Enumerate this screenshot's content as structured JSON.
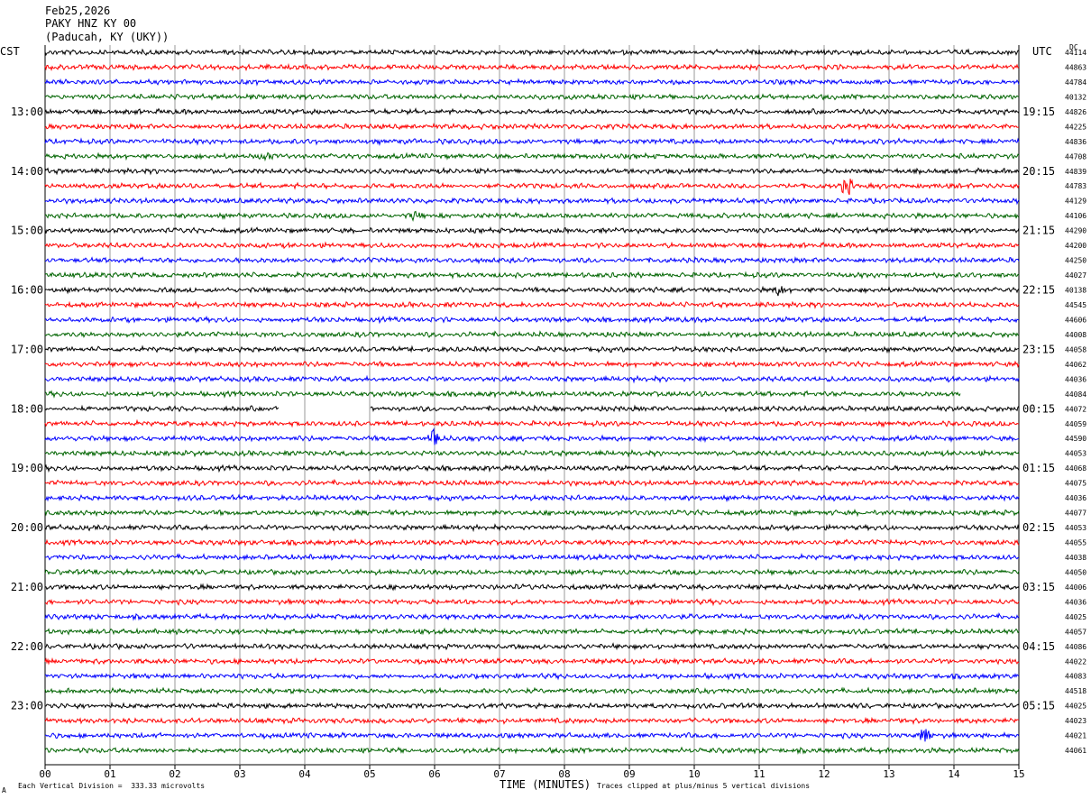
{
  "header": {
    "date": "Feb25,2026",
    "station": "PAKY HNZ KY 00",
    "location": "(Paducah, KY (UKY))"
  },
  "left_axis_label": "CST",
  "right_axis_label": "UTC",
  "dc_label": "DC",
  "footer": {
    "left_mark": "A",
    "scale": "Each Vertical Division =  333.33 microvolts",
    "xlabel": "TIME (MINUTES)",
    "clip_note": "Traces clipped at plus/minus 5 vertical divisions"
  },
  "chart_data": {
    "type": "line",
    "title": "",
    "xlabel": "TIME (MINUTES)",
    "ylabel": "",
    "xlim": [
      0,
      15
    ],
    "x_ticks": [
      "00",
      "01",
      "02",
      "03",
      "04",
      "05",
      "06",
      "07",
      "08",
      "09",
      "10",
      "11",
      "12",
      "13",
      "14",
      "15"
    ],
    "grid": "vertical lines at each minute",
    "trace_colors": [
      "#000000",
      "#ff0000",
      "#0000ff",
      "#006400"
    ],
    "traces_per_hour": 4,
    "minutes_per_trace": 15,
    "left_hour_labels": [
      "13:00",
      "14:00",
      "15:00",
      "16:00",
      "17:00",
      "18:00",
      "19:00",
      "20:00",
      "21:00",
      "22:00",
      "23:00"
    ],
    "right_hour_labels": [
      "19:15",
      "20:15",
      "21:15",
      "22:15",
      "23:15",
      "00:15",
      "01:15",
      "02:15",
      "03:15",
      "04:15",
      "05:15"
    ],
    "first_labeled_trace_index": 4,
    "dc_offsets": [
      "44114",
      "44863",
      "44784",
      "40132",
      "44826",
      "44225",
      "44836",
      "44708",
      "44839",
      "44783",
      "44129",
      "44106",
      "44290",
      "44200",
      "44250",
      "44027",
      "40138",
      "44545",
      "44606",
      "44008",
      "44058",
      "44062",
      "44036",
      "44084",
      "44072",
      "44059",
      "44590",
      "44053",
      "44068",
      "44075",
      "44036",
      "44077",
      "44053",
      "44055",
      "44038",
      "44050",
      "44006",
      "44036",
      "44025",
      "44057",
      "44086",
      "44022",
      "44083",
      "44518",
      "44025",
      "44023",
      "44021",
      "44061"
    ],
    "events": [
      {
        "trace": 7,
        "minute": 3.4,
        "amplitude": 0.4
      },
      {
        "trace": 9,
        "minute": 12.35,
        "amplitude": 1.0
      },
      {
        "trace": 11,
        "minute": 5.7,
        "amplitude": 0.4
      },
      {
        "trace": 16,
        "minute": 11.3,
        "amplitude": 0.5
      },
      {
        "trace": 26,
        "minute": 6.0,
        "amplitude": 1.3
      },
      {
        "trace": 46,
        "minute": 13.55,
        "amplitude": 1.0
      }
    ],
    "gaps": [
      {
        "trace": 23,
        "start_minute": 14.1,
        "end_minute": 15.0
      },
      {
        "trace": 24,
        "start_minute": 3.6,
        "end_minute": 5.0
      }
    ]
  }
}
